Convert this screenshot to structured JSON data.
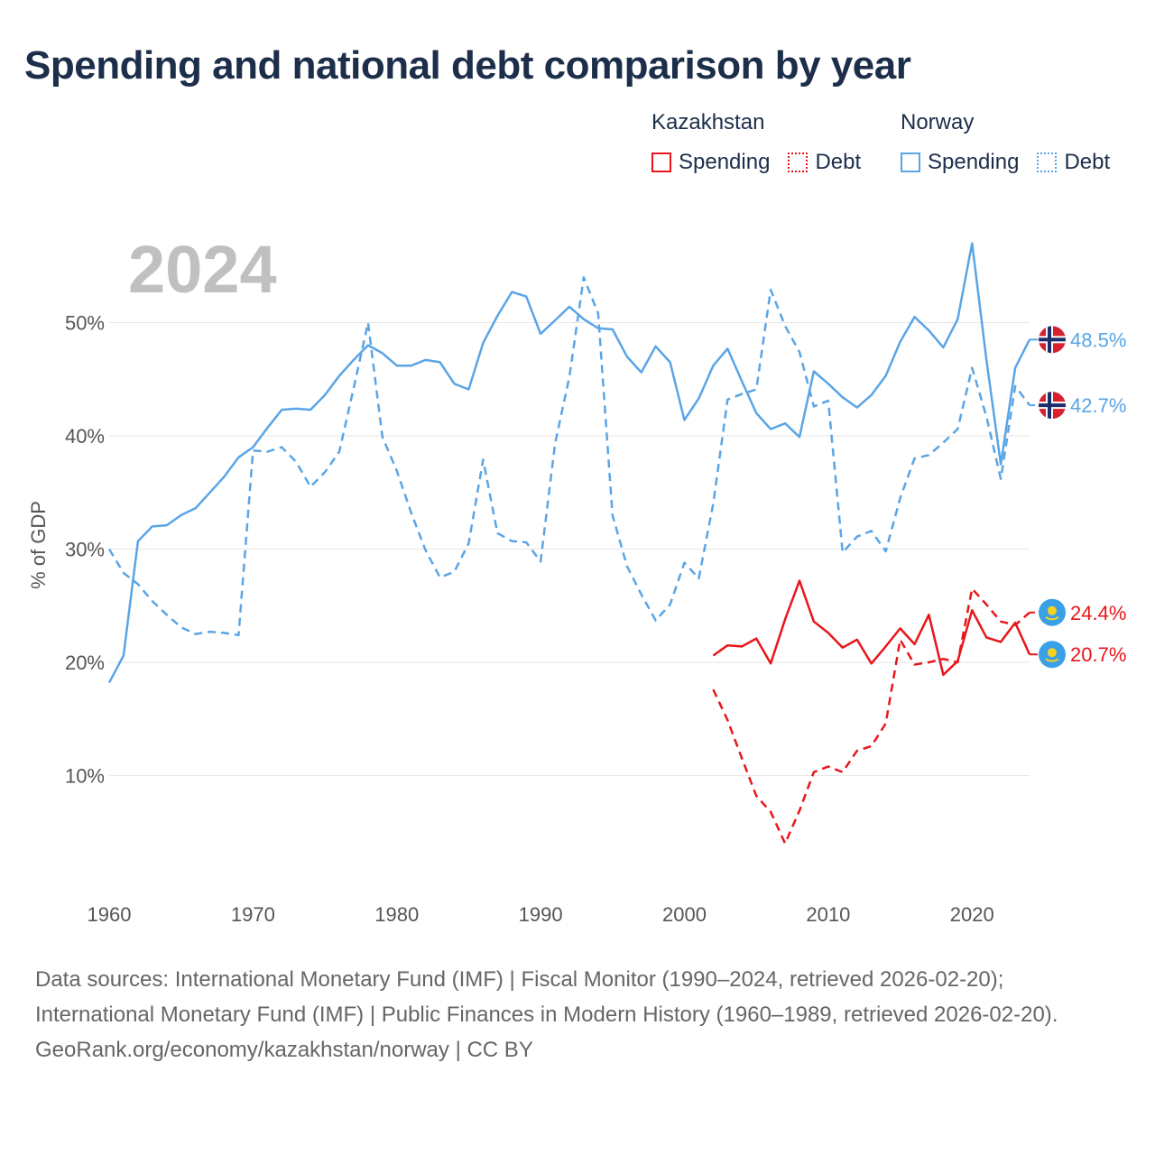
{
  "title": "Spending and national debt comparison by year",
  "legend": {
    "groups": [
      {
        "country": "Kazakhstan",
        "items": [
          {
            "label": "Spending",
            "style": "solid",
            "color": "#e8161b"
          },
          {
            "label": "Debt",
            "style": "dotted",
            "color": "#e8161b"
          }
        ]
      },
      {
        "country": "Norway",
        "items": [
          {
            "label": "Spending",
            "style": "solid",
            "color": "#5aa5e6"
          },
          {
            "label": "Debt",
            "style": "dotted",
            "color": "#5aa5e6"
          }
        ]
      }
    ]
  },
  "colors": {
    "kazakhstan": "#e8161b",
    "norway": "#5aa5e6",
    "grid": "#e6e6e6",
    "axis_text": "#555555",
    "year_watermark": "#c0c0c0"
  },
  "chart_data": {
    "type": "line",
    "title": "Spending and national debt comparison by year",
    "year_label": "2024",
    "xlabel": "",
    "ylabel": "% of GDP",
    "xlim": [
      1960,
      2024
    ],
    "ylim": [
      0,
      60
    ],
    "x_ticks": [
      1960,
      1970,
      1980,
      1990,
      2000,
      2010,
      2020
    ],
    "y_ticks": [
      10,
      20,
      30,
      40,
      50
    ],
    "y_tick_labels": [
      "10%",
      "20%",
      "30%",
      "40%",
      "50%"
    ],
    "series": [
      {
        "name": "Norway Spending",
        "country": "Norway",
        "measure": "Spending",
        "dash": "solid",
        "color": "#5aa5e6",
        "start_year": 1960,
        "values": [
          18.2,
          20.6,
          30.7,
          32.0,
          32.1,
          33.0,
          33.6,
          35.0,
          36.4,
          38.1,
          39.0,
          40.7,
          42.3,
          42.4,
          42.3,
          43.6,
          45.3,
          46.7,
          48.0,
          47.3,
          46.2,
          46.2,
          46.7,
          46.5,
          44.6,
          44.1,
          48.2,
          50.6,
          52.7,
          52.3,
          49.0,
          50.2,
          51.4,
          50.3,
          49.5,
          49.4,
          47.0,
          45.6,
          47.9,
          46.5,
          41.4,
          43.3,
          46.2,
          47.7,
          44.8,
          42.0,
          40.6,
          41.1,
          39.9,
          45.7,
          44.6,
          43.4,
          42.5,
          43.6,
          45.3,
          48.3,
          50.5,
          49.3,
          47.8,
          50.3,
          57.0,
          46.7,
          37.5,
          46.0,
          48.5
        ],
        "end_label": "48.5%"
      },
      {
        "name": "Norway Debt",
        "country": "Norway",
        "measure": "Debt",
        "dash": "dashed",
        "color": "#5aa5e6",
        "start_year": 1960,
        "values": [
          30.0,
          27.9,
          26.9,
          25.4,
          24.2,
          23.1,
          22.5,
          22.7,
          22.6,
          22.4,
          38.7,
          38.6,
          39.0,
          37.7,
          35.5,
          36.8,
          38.6,
          44.2,
          50.0,
          39.9,
          36.9,
          33.2,
          29.9,
          27.5,
          28.0,
          30.5,
          37.9,
          31.4,
          30.7,
          30.6,
          28.9,
          39.3,
          45.2,
          54.0,
          50.8,
          33.0,
          28.5,
          26.0,
          23.7,
          25.1,
          28.8,
          27.4,
          34.0,
          43.2,
          43.7,
          44.1,
          52.9,
          49.7,
          47.4,
          42.6,
          43.1,
          29.7,
          31.1,
          31.6,
          29.8,
          34.5,
          38.0,
          38.3,
          39.4,
          40.6,
          46.0,
          41.7,
          36.2,
          44.4,
          42.7
        ],
        "end_label": "42.7%"
      },
      {
        "name": "Kazakhstan Spending",
        "country": "Kazakhstan",
        "measure": "Spending",
        "dash": "solid",
        "color": "#e8161b",
        "start_year": 2002,
        "values": [
          20.6,
          21.5,
          21.4,
          22.1,
          19.9,
          23.8,
          27.2,
          23.6,
          22.6,
          21.3,
          22.0,
          19.9,
          21.4,
          23.0,
          21.6,
          24.2,
          18.9,
          20.1,
          24.6,
          22.2,
          21.8,
          23.5,
          20.7
        ],
        "end_label": "20.7%"
      },
      {
        "name": "Kazakhstan Debt",
        "country": "Kazakhstan",
        "measure": "Debt",
        "dash": "dashed",
        "color": "#e8161b",
        "start_year": 2002,
        "values": [
          17.6,
          14.9,
          11.5,
          8.2,
          6.8,
          4.0,
          6.9,
          10.3,
          10.8,
          10.3,
          12.2,
          12.6,
          14.6,
          22.0,
          19.8,
          20.0,
          20.3,
          20.0,
          26.5,
          25.1,
          23.6,
          23.3,
          24.4
        ],
        "end_label": "24.4%"
      }
    ]
  },
  "footer": {
    "sources": "Data sources: International Monetary Fund (IMF) | Fiscal Monitor (1990–2024, retrieved 2026-02-20); International Monetary Fund (IMF) | Public Finances in Modern History (1960–1989, retrieved 2026-02-20).",
    "credit": "GeoRank.org/economy/kazakhstan/norway | CC BY"
  }
}
